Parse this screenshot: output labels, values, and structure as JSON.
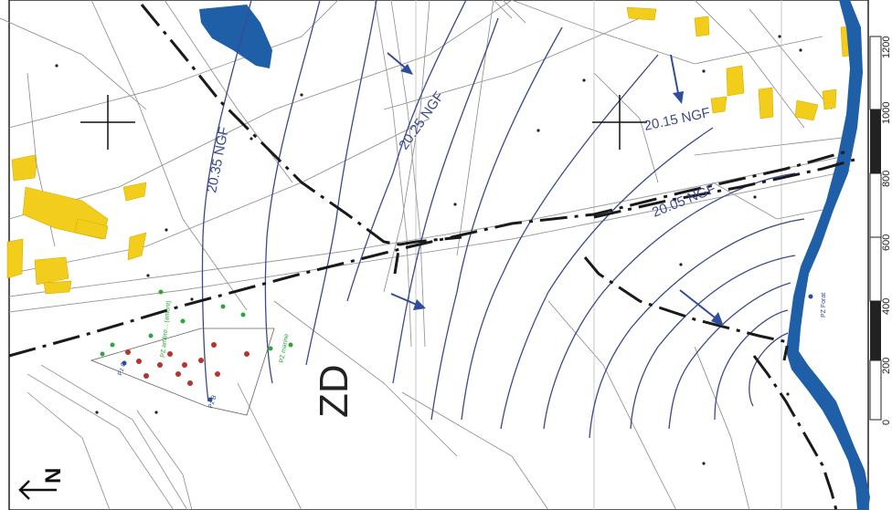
{
  "contour_labels": [
    "20.35 NGF",
    "20.25 NGF",
    "20.15 NGF",
    "20.05 NGF"
  ],
  "zone_label": "ZD",
  "well_labels": {
    "pz_c": "Pz C",
    "pz_b": "Pz B",
    "pz_forat": "PZ Forat",
    "pz_amont": "PZ ambre... (amont)",
    "pz_marine": "PZ marine"
  },
  "scale_bar": {
    "ticks": [
      "0",
      "200",
      "400",
      "600",
      "800",
      "1000",
      "1200"
    ]
  },
  "north_arrow": "N",
  "colors": {
    "contour": "#3b4a8c",
    "river": "#1e5fa8",
    "buildings": "#f2cd1c",
    "green_points": "#2aa63a",
    "red_points": "#b3362e",
    "flow_arrows": "#2f4d9c"
  }
}
